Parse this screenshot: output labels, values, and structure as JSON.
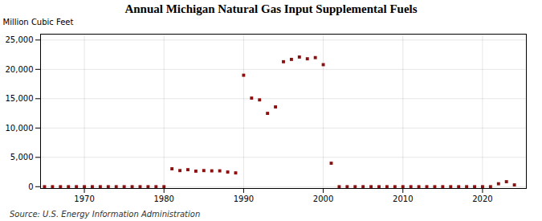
{
  "chart_data": {
    "type": "scatter",
    "title": "Annual Michigan Natural Gas Input Supplemental Fuels",
    "ylabel": "Million Cubic Feet",
    "caption": "Source: U.S. Energy Information Administration",
    "color": "#8b1010",
    "marker": "square",
    "grid": true,
    "xlim": [
      1964.5,
      2025.5
    ],
    "ylim": [
      -300,
      26000
    ],
    "xticks": [
      1970,
      1980,
      1990,
      2000,
      2010,
      2020
    ],
    "yticks": [
      0,
      {
        "value": 5000,
        "label": "5,000"
      },
      {
        "value": 10000,
        "label": "10,000"
      },
      {
        "value": 15000,
        "label": "15,000"
      },
      {
        "value": 20000,
        "label": "20,000"
      },
      {
        "value": 25000,
        "label": "25,000"
      }
    ],
    "x": [
      1965,
      1966,
      1967,
      1968,
      1969,
      1970,
      1971,
      1972,
      1973,
      1974,
      1975,
      1976,
      1977,
      1978,
      1979,
      1980,
      1981,
      1982,
      1983,
      1984,
      1985,
      1986,
      1987,
      1988,
      1989,
      1990,
      1991,
      1992,
      1993,
      1994,
      1995,
      1996,
      1997,
      1998,
      1999,
      2000,
      2001,
      2002,
      2003,
      2004,
      2005,
      2006,
      2007,
      2008,
      2009,
      2010,
      2011,
      2012,
      2013,
      2014,
      2015,
      2016,
      2017,
      2018,
      2019,
      2020,
      2021,
      2022,
      2023,
      2024
    ],
    "values": [
      0,
      0,
      0,
      0,
      0,
      0,
      0,
      0,
      0,
      0,
      0,
      0,
      0,
      0,
      0,
      0,
      3050,
      2750,
      2900,
      2650,
      2750,
      2700,
      2700,
      2500,
      2350,
      19000,
      15100,
      14800,
      12500,
      13600,
      21300,
      21700,
      22100,
      21800,
      22000,
      20800,
      4000,
      0,
      0,
      0,
      0,
      0,
      0,
      0,
      0,
      0,
      0,
      0,
      0,
      0,
      0,
      0,
      0,
      0,
      0,
      0,
      0,
      500,
      850,
      300
    ]
  }
}
